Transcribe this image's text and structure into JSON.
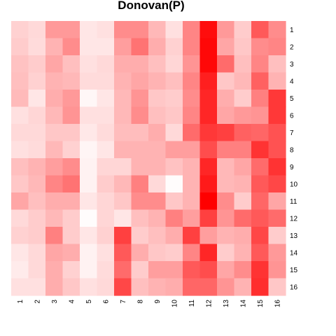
{
  "chart_data": {
    "type": "heatmap",
    "title": "Donovan(P)",
    "xlabel": "",
    "ylabel": "",
    "x_labels": [
      "1",
      "2",
      "3",
      "4",
      "5",
      "6",
      "7",
      "8",
      "9",
      "10",
      "11",
      "12",
      "13",
      "14",
      "15",
      "16"
    ],
    "y_labels": [
      "1",
      "2",
      "3",
      "4",
      "5",
      "6",
      "7",
      "8",
      "9",
      "10",
      "11",
      "12",
      "13",
      "14",
      "15",
      "16"
    ],
    "value_range": [
      0,
      1
    ],
    "color_low": "#ffffff",
    "color_high": "#ff0000",
    "legend": "none",
    "grid": false,
    "values": [
      [
        0.18,
        0.15,
        0.4,
        0.4,
        0.1,
        0.12,
        0.45,
        0.45,
        0.28,
        0.12,
        0.48,
        0.95,
        0.4,
        0.2,
        0.65,
        0.45
      ],
      [
        0.2,
        0.14,
        0.3,
        0.45,
        0.1,
        0.1,
        0.38,
        0.55,
        0.32,
        0.18,
        0.48,
        0.97,
        0.35,
        0.22,
        0.45,
        0.48
      ],
      [
        0.24,
        0.2,
        0.35,
        0.25,
        0.12,
        0.15,
        0.32,
        0.32,
        0.25,
        0.16,
        0.42,
        0.97,
        0.58,
        0.25,
        0.48,
        0.25
      ],
      [
        0.25,
        0.18,
        0.3,
        0.28,
        0.14,
        0.14,
        0.3,
        0.35,
        0.3,
        0.25,
        0.48,
        0.88,
        0.22,
        0.28,
        0.62,
        0.3
      ],
      [
        0.27,
        0.1,
        0.32,
        0.4,
        0.03,
        0.1,
        0.28,
        0.42,
        0.22,
        0.2,
        0.45,
        0.85,
        0.32,
        0.2,
        0.5,
        0.78
      ],
      [
        0.12,
        0.16,
        0.28,
        0.42,
        0.12,
        0.12,
        0.28,
        0.45,
        0.25,
        0.22,
        0.48,
        0.85,
        0.35,
        0.4,
        0.42,
        0.78
      ],
      [
        0.15,
        0.15,
        0.22,
        0.22,
        0.09,
        0.14,
        0.26,
        0.26,
        0.32,
        0.15,
        0.58,
        0.78,
        0.75,
        0.62,
        0.6,
        0.68
      ],
      [
        0.12,
        0.14,
        0.28,
        0.18,
        0.04,
        0.1,
        0.3,
        0.3,
        0.3,
        0.38,
        0.38,
        0.7,
        0.5,
        0.5,
        0.8,
        0.68
      ],
      [
        0.25,
        0.3,
        0.38,
        0.45,
        0.05,
        0.16,
        0.16,
        0.3,
        0.3,
        0.24,
        0.3,
        0.85,
        0.28,
        0.35,
        0.58,
        0.8
      ],
      [
        0.22,
        0.28,
        0.48,
        0.55,
        0.05,
        0.2,
        0.28,
        0.5,
        0.15,
        0.01,
        0.3,
        0.9,
        0.28,
        0.3,
        0.65,
        0.72
      ],
      [
        0.35,
        0.25,
        0.32,
        0.32,
        0.1,
        0.16,
        0.22,
        0.45,
        0.45,
        0.22,
        0.3,
        1.0,
        0.45,
        0.2,
        0.6,
        0.35
      ],
      [
        0.15,
        0.2,
        0.28,
        0.2,
        0.01,
        0.16,
        0.1,
        0.25,
        0.3,
        0.5,
        0.38,
        0.75,
        0.42,
        0.58,
        0.65,
        0.58
      ],
      [
        0.18,
        0.2,
        0.5,
        0.2,
        0.1,
        0.18,
        0.75,
        0.2,
        0.25,
        0.32,
        0.75,
        0.38,
        0.3,
        0.32,
        0.72,
        0.2
      ],
      [
        0.1,
        0.15,
        0.35,
        0.32,
        0.05,
        0.12,
        0.65,
        0.32,
        0.22,
        0.2,
        0.48,
        0.85,
        0.2,
        0.3,
        0.65,
        0.4
      ],
      [
        0.08,
        0.15,
        0.32,
        0.18,
        0.05,
        0.14,
        0.58,
        0.2,
        0.38,
        0.38,
        0.65,
        0.7,
        0.35,
        0.45,
        0.8,
        0.42
      ],
      [
        0.12,
        0.12,
        0.32,
        0.22,
        0.12,
        0.15,
        0.72,
        0.25,
        0.3,
        0.32,
        0.6,
        0.6,
        0.42,
        0.3,
        0.82,
        0.22
      ]
    ]
  }
}
